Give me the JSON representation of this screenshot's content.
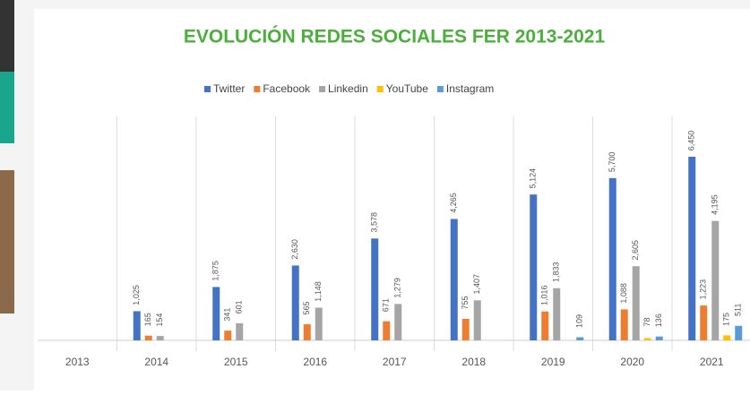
{
  "chart_data": {
    "type": "bar",
    "title": "EVOLUCIÓN REDES SOCIALES FER  2013-2021",
    "categories": [
      "2013",
      "2014",
      "2015",
      "2016",
      "2017",
      "2018",
      "2019",
      "2020",
      "2021"
    ],
    "series": [
      {
        "name": "Twitter",
        "color": "#4472c4",
        "values": [
          null,
          1025,
          1875,
          2630,
          3578,
          4265,
          5124,
          5700,
          6450
        ],
        "value_labels": [
          null,
          "1,025",
          "1,875",
          "2,630",
          "3,578",
          "4,265",
          "5,124",
          "5,700",
          "6,450"
        ]
      },
      {
        "name": "Facebook",
        "color": "#ed7d31",
        "values": [
          null,
          165,
          341,
          565,
          671,
          755,
          1016,
          1088,
          1223
        ],
        "value_labels": [
          null,
          "165",
          "341",
          "565",
          "671",
          "755",
          "1,016",
          "1,088",
          "1,223"
        ]
      },
      {
        "name": "Linkedin",
        "color": "#a5a5a5",
        "values": [
          null,
          154,
          601,
          1148,
          1279,
          1407,
          1833,
          2605,
          4195
        ],
        "value_labels": [
          null,
          "154",
          "601",
          "1,148",
          "1,279",
          "1,407",
          "1,833",
          "2,605",
          "4,195"
        ]
      },
      {
        "name": "YouTube",
        "color": "#ffc000",
        "values": [
          null,
          null,
          null,
          null,
          null,
          null,
          null,
          78,
          175
        ],
        "value_labels": [
          null,
          null,
          null,
          null,
          null,
          null,
          null,
          "78",
          "175"
        ]
      },
      {
        "name": "Instagram",
        "color": "#5b9bd5",
        "values": [
          null,
          null,
          null,
          null,
          null,
          null,
          109,
          136,
          511
        ],
        "value_labels": [
          null,
          null,
          null,
          null,
          null,
          null,
          "109",
          "136",
          "511"
        ]
      }
    ],
    "legend": "top"
  }
}
